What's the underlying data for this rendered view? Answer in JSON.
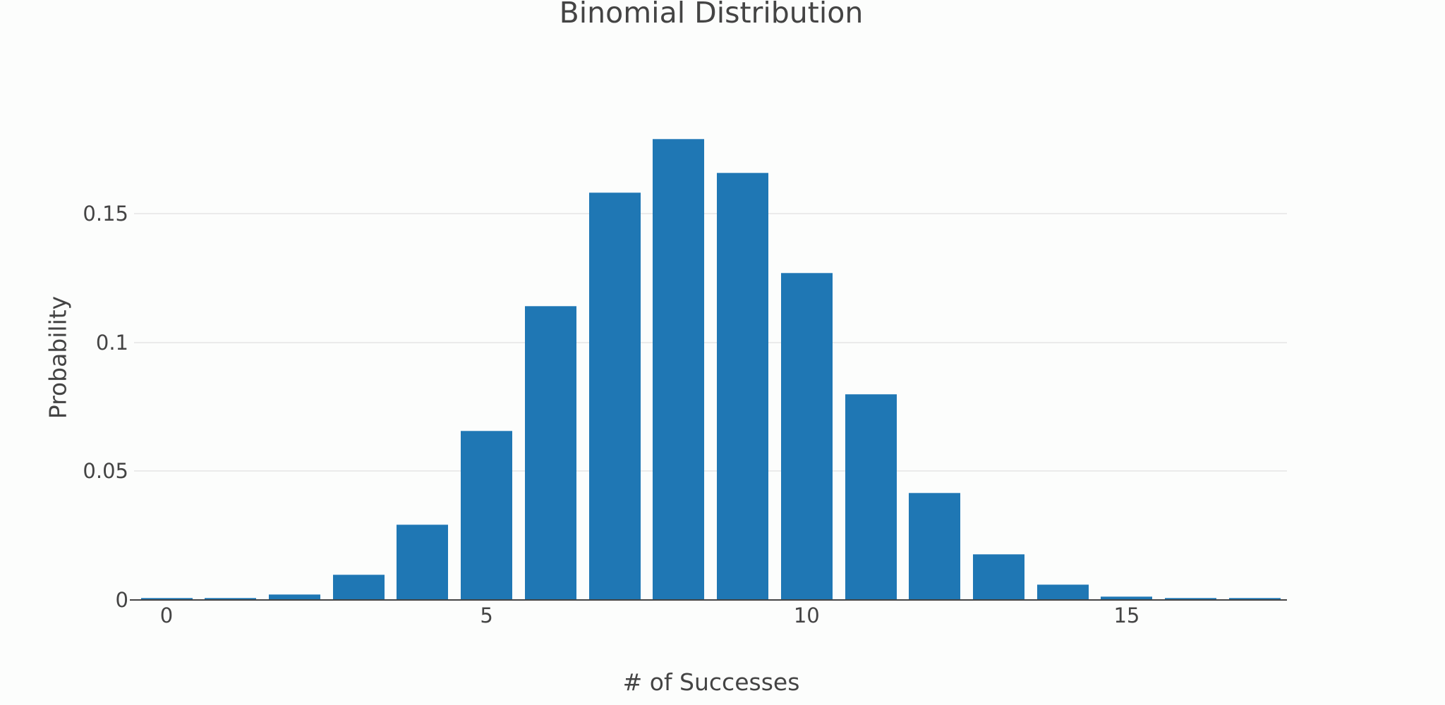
{
  "chart_data": {
    "type": "bar",
    "title": "Binomial Distribution",
    "xlabel": "# of Successes",
    "ylabel": "Probability",
    "categories": [
      0,
      1,
      2,
      3,
      4,
      5,
      6,
      7,
      8,
      9,
      10,
      11,
      12,
      13,
      14,
      15,
      16,
      17
    ],
    "values": [
      0.0005,
      0.0005,
      0.0022,
      0.0099,
      0.0293,
      0.0657,
      0.1141,
      0.1582,
      0.179,
      0.166,
      0.127,
      0.08,
      0.0416,
      0.0178,
      0.006,
      0.0015,
      0.0005,
      0.0005
    ],
    "xticks": [
      0,
      5,
      10,
      15
    ],
    "yticks": [
      0,
      0.05,
      0.1,
      0.15
    ],
    "ytick_labels": [
      "0",
      "0.05",
      "0.1",
      "0.15"
    ],
    "xtick_labels": [
      "0",
      "5",
      "10",
      "15"
    ],
    "xlim": [
      -0.5,
      17.5
    ],
    "ylim": [
      0,
      0.2165
    ],
    "grid": true,
    "legend": false,
    "bar_color": "#1f77b4"
  },
  "title": "Binomial Distribution",
  "xlabel": "# of Successes",
  "ylabel": "Probability"
}
